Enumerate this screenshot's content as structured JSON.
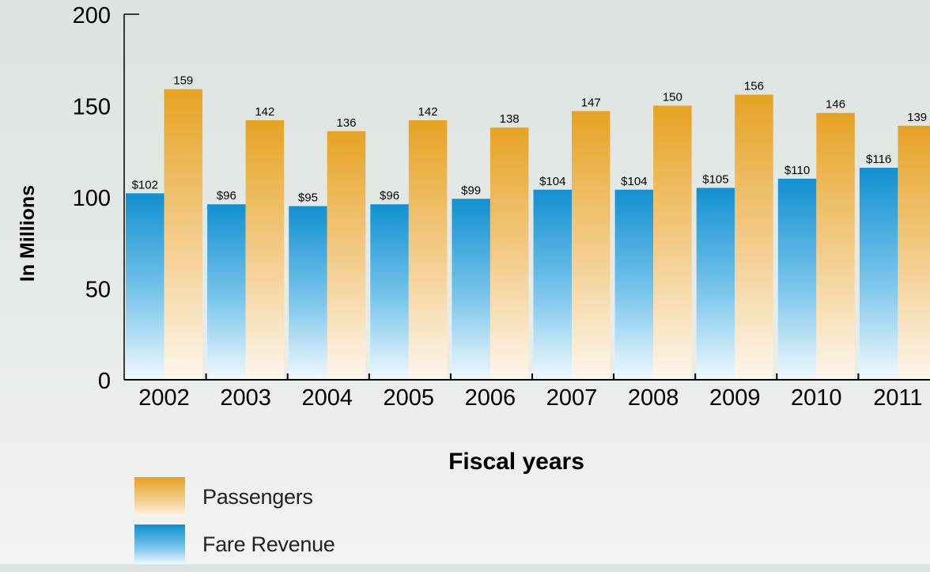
{
  "colors": {
    "passengers": "#e8a628",
    "fare_revenue": "#1595d3",
    "axis": "#000000"
  },
  "legend": {
    "passengers": "Passengers",
    "fare_revenue": "Fare Revenue"
  },
  "chart_data": {
    "type": "bar",
    "title": "",
    "xlabel": "Fiscal years",
    "ylabel": "In Millions",
    "ylim": [
      0,
      200
    ],
    "yticks": [
      0,
      50,
      100,
      150,
      200
    ],
    "grid": false,
    "legend_position": "bottom-left",
    "categories": [
      "2002",
      "2003",
      "2004",
      "2005",
      "2006",
      "2007",
      "2008",
      "2009",
      "2010",
      "2011"
    ],
    "series": [
      {
        "name": "Fare Revenue",
        "values": [
          102,
          96,
          95,
          96,
          99,
          104,
          104,
          105,
          110,
          116
        ],
        "labels": [
          "$102",
          "$96",
          "$95",
          "$96",
          "$99",
          "$104",
          "$104",
          "$105",
          "$110",
          "$116"
        ]
      },
      {
        "name": "Passengers",
        "values": [
          159,
          142,
          136,
          142,
          138,
          147,
          150,
          156,
          146,
          139
        ],
        "labels": [
          "159",
          "142",
          "136",
          "142",
          "138",
          "147",
          "150",
          "156",
          "146",
          "139"
        ]
      }
    ]
  }
}
